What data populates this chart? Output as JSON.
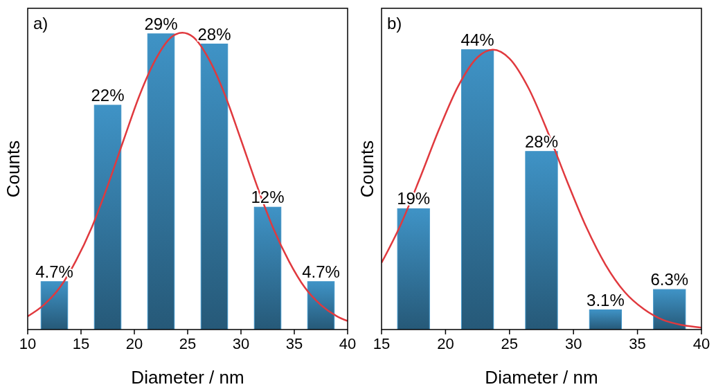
{
  "chart_data": [
    {
      "type": "bar",
      "xlabel": "Diameter / nm",
      "ylabel": "Counts",
      "annotations": [
        "a)"
      ],
      "xlim": [
        10,
        40
      ],
      "xticks": [
        10,
        15,
        20,
        25,
        30,
        35,
        40
      ],
      "ylim": [
        0,
        31.5
      ],
      "tick_labels": "x",
      "grid": false,
      "series": [
        {
          "color": "#3f93c6",
          "x": [
            12.5,
            17.5,
            22.5,
            27.5,
            32.5,
            37.5
          ],
          "values": [
            4.7,
            22,
            29,
            28,
            12,
            4.7
          ],
          "value_labels": [
            "4.7%",
            "22%",
            "29%",
            "28%",
            "12%",
            "4.7%"
          ]
        },
        {
          "type": "line",
          "color": "#e0393e",
          "x": [
            10,
            11.5,
            13,
            14.5,
            16,
            17.5,
            19,
            20.5,
            22,
            23.5,
            24.5,
            25.5,
            27,
            28.5,
            30,
            31.5,
            33,
            34.5,
            36,
            37.5,
            39,
            40
          ],
          "values": [
            1.3,
            2.4,
            4.1,
            6.7,
            10.0,
            14.1,
            18.6,
            23.0,
            26.5,
            28.7,
            29.1,
            28.7,
            26.5,
            23.0,
            18.6,
            14.1,
            10.0,
            6.7,
            4.1,
            2.4,
            1.3,
            0.84
          ]
        }
      ]
    },
    {
      "type": "bar",
      "xlabel": "Diameter / nm",
      "ylabel": "Counts",
      "annotations": [
        "b)"
      ],
      "xlim": [
        15,
        40
      ],
      "xticks": [
        15,
        20,
        25,
        30,
        35,
        40
      ],
      "ylim": [
        0,
        50.5
      ],
      "tick_labels": "x",
      "grid": false,
      "series": [
        {
          "color": "#3f93c6",
          "x": [
            17.5,
            22.5,
            27.5,
            32.5,
            37.5
          ],
          "values": [
            19,
            44,
            28,
            3.1,
            6.3
          ],
          "value_labels": [
            "19%",
            "44%",
            "28%",
            "3.1%",
            "6.3%"
          ]
        },
        {
          "type": "line",
          "color": "#e0393e",
          "x": [
            15,
            16.5,
            18,
            19.5,
            21,
            22.5,
            23.7,
            25,
            26.5,
            28,
            29.5,
            31,
            32.5,
            34,
            35.5,
            37,
            38.5,
            40
          ],
          "values": [
            10.5,
            16.5,
            23.8,
            31.5,
            38.3,
            42.8,
            44,
            42.6,
            37.9,
            31.0,
            23.3,
            16.1,
            10.2,
            5.9,
            3.2,
            1.5,
            0.7,
            0.3
          ]
        }
      ]
    }
  ]
}
